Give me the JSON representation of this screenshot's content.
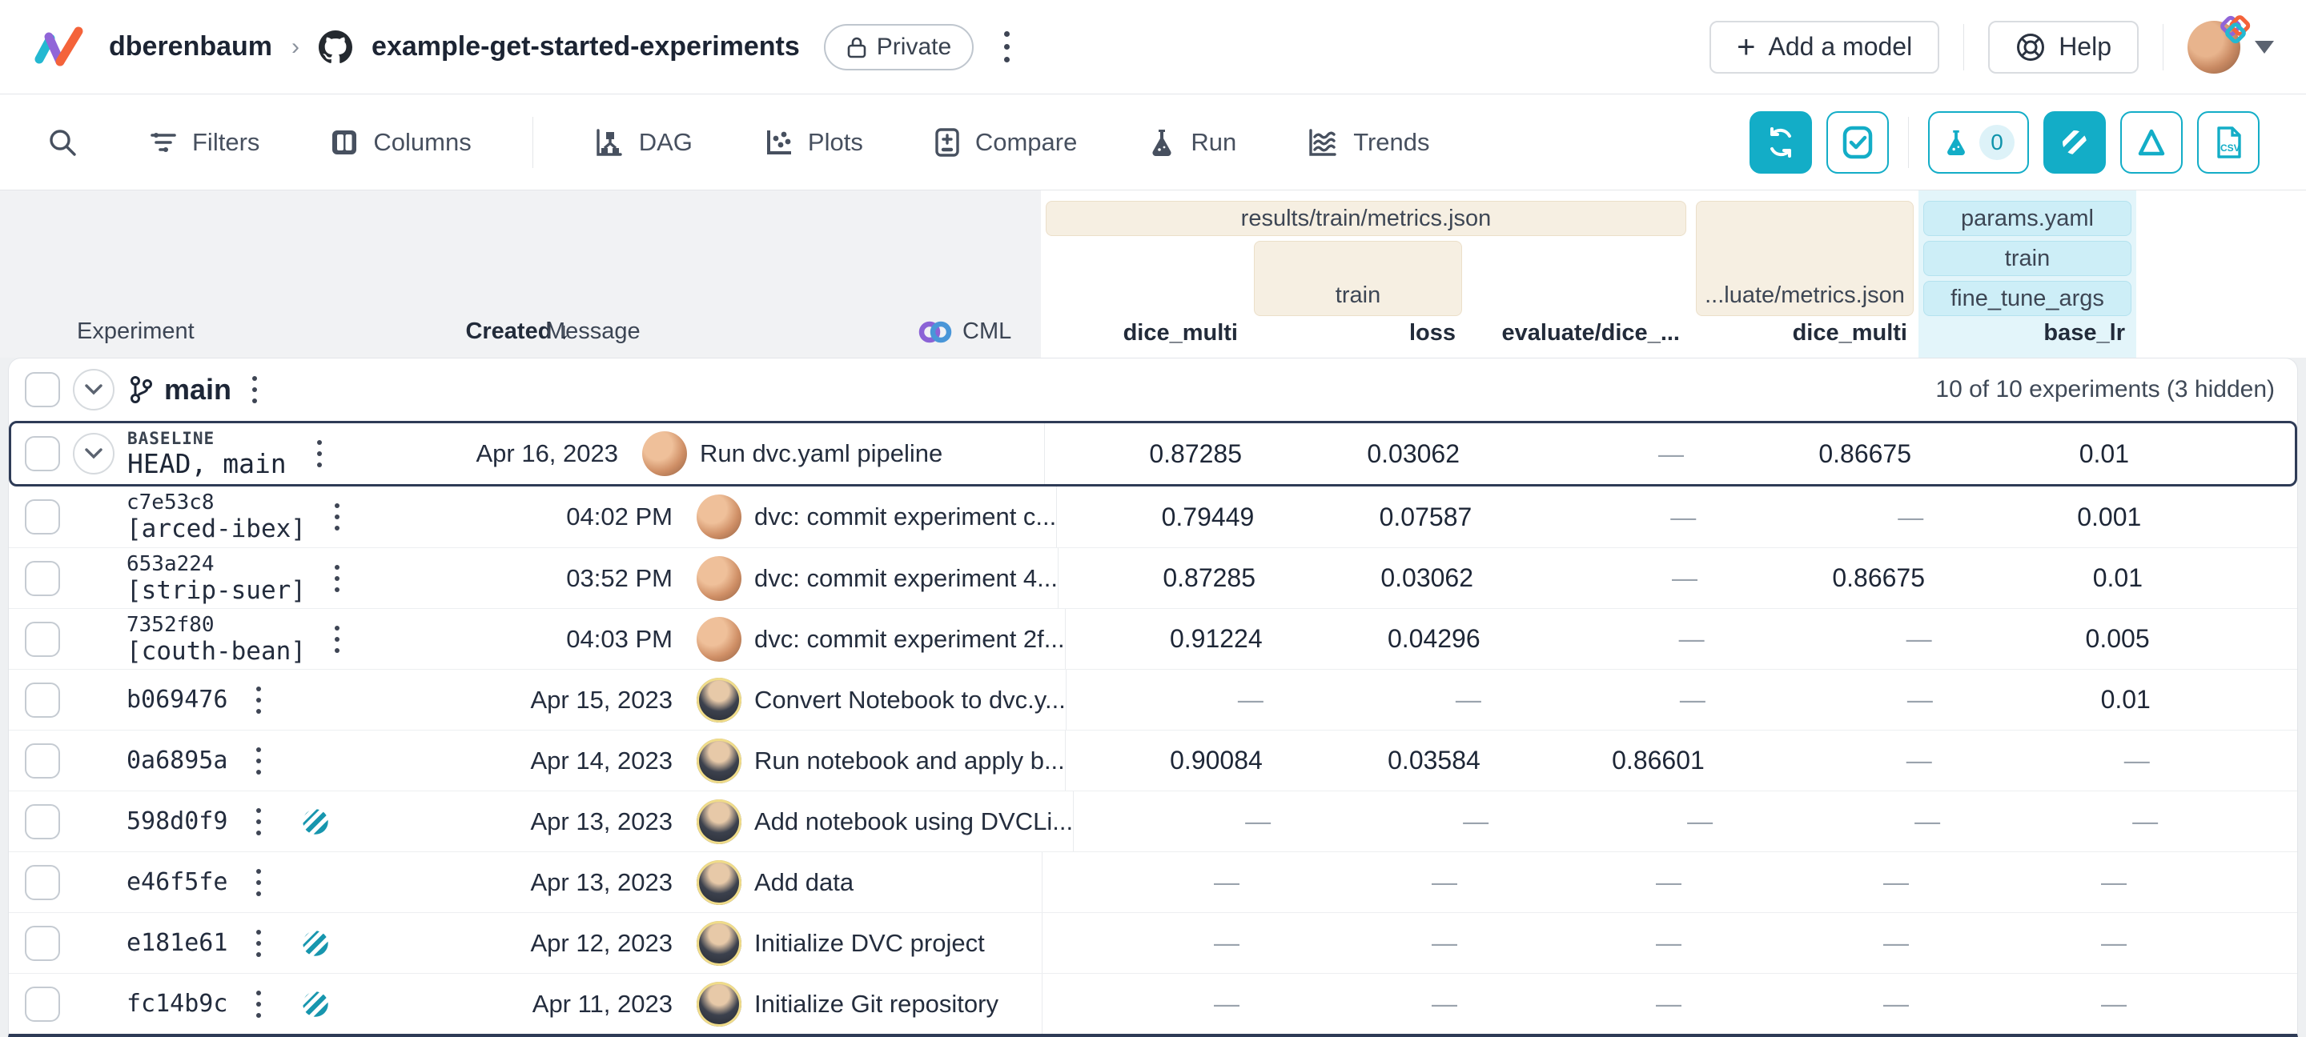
{
  "colors": {
    "accent": "#13adc7",
    "cream_group": "#f6efe2",
    "cyan_group": "#cdeef7",
    "selected_border": "#2e3b56"
  },
  "header": {
    "owner": "dberenbaum",
    "repo": "example-get-started-experiments",
    "privacy_badge": "Private",
    "add_model_label": "Add a model",
    "help_label": "Help"
  },
  "toolbar": {
    "items": [
      {
        "label": "Filters"
      },
      {
        "label": "Columns"
      },
      {
        "label": "DAG"
      },
      {
        "label": "Plots"
      },
      {
        "label": "Compare"
      },
      {
        "label": "Run"
      },
      {
        "label": "Trends"
      }
    ],
    "run_counter": "0",
    "csv_label": "CSV"
  },
  "table": {
    "header": {
      "experiment": "Experiment",
      "created": "Created",
      "sort_arrow": "↓",
      "message": "Message",
      "cml": "CML",
      "groups": {
        "results_file": "results/train/metrics.json",
        "results_train": "train",
        "evaluate_file": "...luate/metrics.json",
        "params_file": "params.yaml",
        "params_train": "train",
        "params_fine_tune": "fine_tune_args"
      },
      "columns": [
        "dice_multi",
        "loss",
        "evaluate/dice_...",
        "dice_multi",
        "base_lr"
      ]
    },
    "branch": {
      "name": "main",
      "summary": "10 of 10 experiments (3 hidden)"
    },
    "rows": [
      {
        "badge": "BASELINE",
        "name": "HEAD, main",
        "created": "Apr 16, 2023",
        "message": "Run dvc.yaml pipeline",
        "avatar_variant": "a",
        "values": [
          "0.87285",
          "0.03062",
          "—",
          "0.86675",
          "0.01"
        ]
      },
      {
        "hash": "c7e53c8",
        "label": "[arced-ibex]",
        "created": "04:02 PM",
        "message": "dvc: commit experiment c...",
        "avatar_variant": "a",
        "values": [
          "0.79449",
          "0.07587",
          "—",
          "—",
          "0.001"
        ]
      },
      {
        "hash": "653a224",
        "label": "[strip-suer]",
        "created": "03:52 PM",
        "message": "dvc: commit experiment 4...",
        "avatar_variant": "a",
        "values": [
          "0.87285",
          "0.03062",
          "—",
          "0.86675",
          "0.01"
        ]
      },
      {
        "hash": "7352f80",
        "label": "[couth-bean]",
        "created": "04:03 PM",
        "message": "dvc: commit experiment 2f...",
        "avatar_variant": "a",
        "values": [
          "0.91224",
          "0.04296",
          "—",
          "—",
          "0.005"
        ]
      },
      {
        "hash": "b069476",
        "created": "Apr 15, 2023",
        "message": "Convert Notebook to dvc.y...",
        "avatar_variant": "b",
        "values": [
          "—",
          "—",
          "—",
          "—",
          "0.01"
        ]
      },
      {
        "hash": "0a6895a",
        "created": "Apr 14, 2023",
        "message": "Run notebook and apply b...",
        "avatar_variant": "b",
        "values": [
          "0.90084",
          "0.03584",
          "0.86601",
          "—",
          "—"
        ]
      },
      {
        "hash": "598d0f9",
        "hidden": true,
        "created": "Apr 13, 2023",
        "message": "Add notebook using DVCLi...",
        "avatar_variant": "b",
        "values": [
          "—",
          "—",
          "—",
          "—",
          "—"
        ]
      },
      {
        "hash": "e46f5fe",
        "created": "Apr 13, 2023",
        "message": "Add data",
        "avatar_variant": "b",
        "values": [
          "—",
          "—",
          "—",
          "—",
          "—"
        ]
      },
      {
        "hash": "e181e61",
        "hidden": true,
        "created": "Apr 12, 2023",
        "message": "Initialize DVC project",
        "avatar_variant": "b",
        "values": [
          "—",
          "—",
          "—",
          "—",
          "—"
        ]
      },
      {
        "hash": "fc14b9c",
        "hidden": true,
        "created": "Apr 11, 2023",
        "message": "Initialize Git repository",
        "avatar_variant": "b",
        "values": [
          "—",
          "—",
          "—",
          "—",
          "—"
        ]
      }
    ]
  }
}
